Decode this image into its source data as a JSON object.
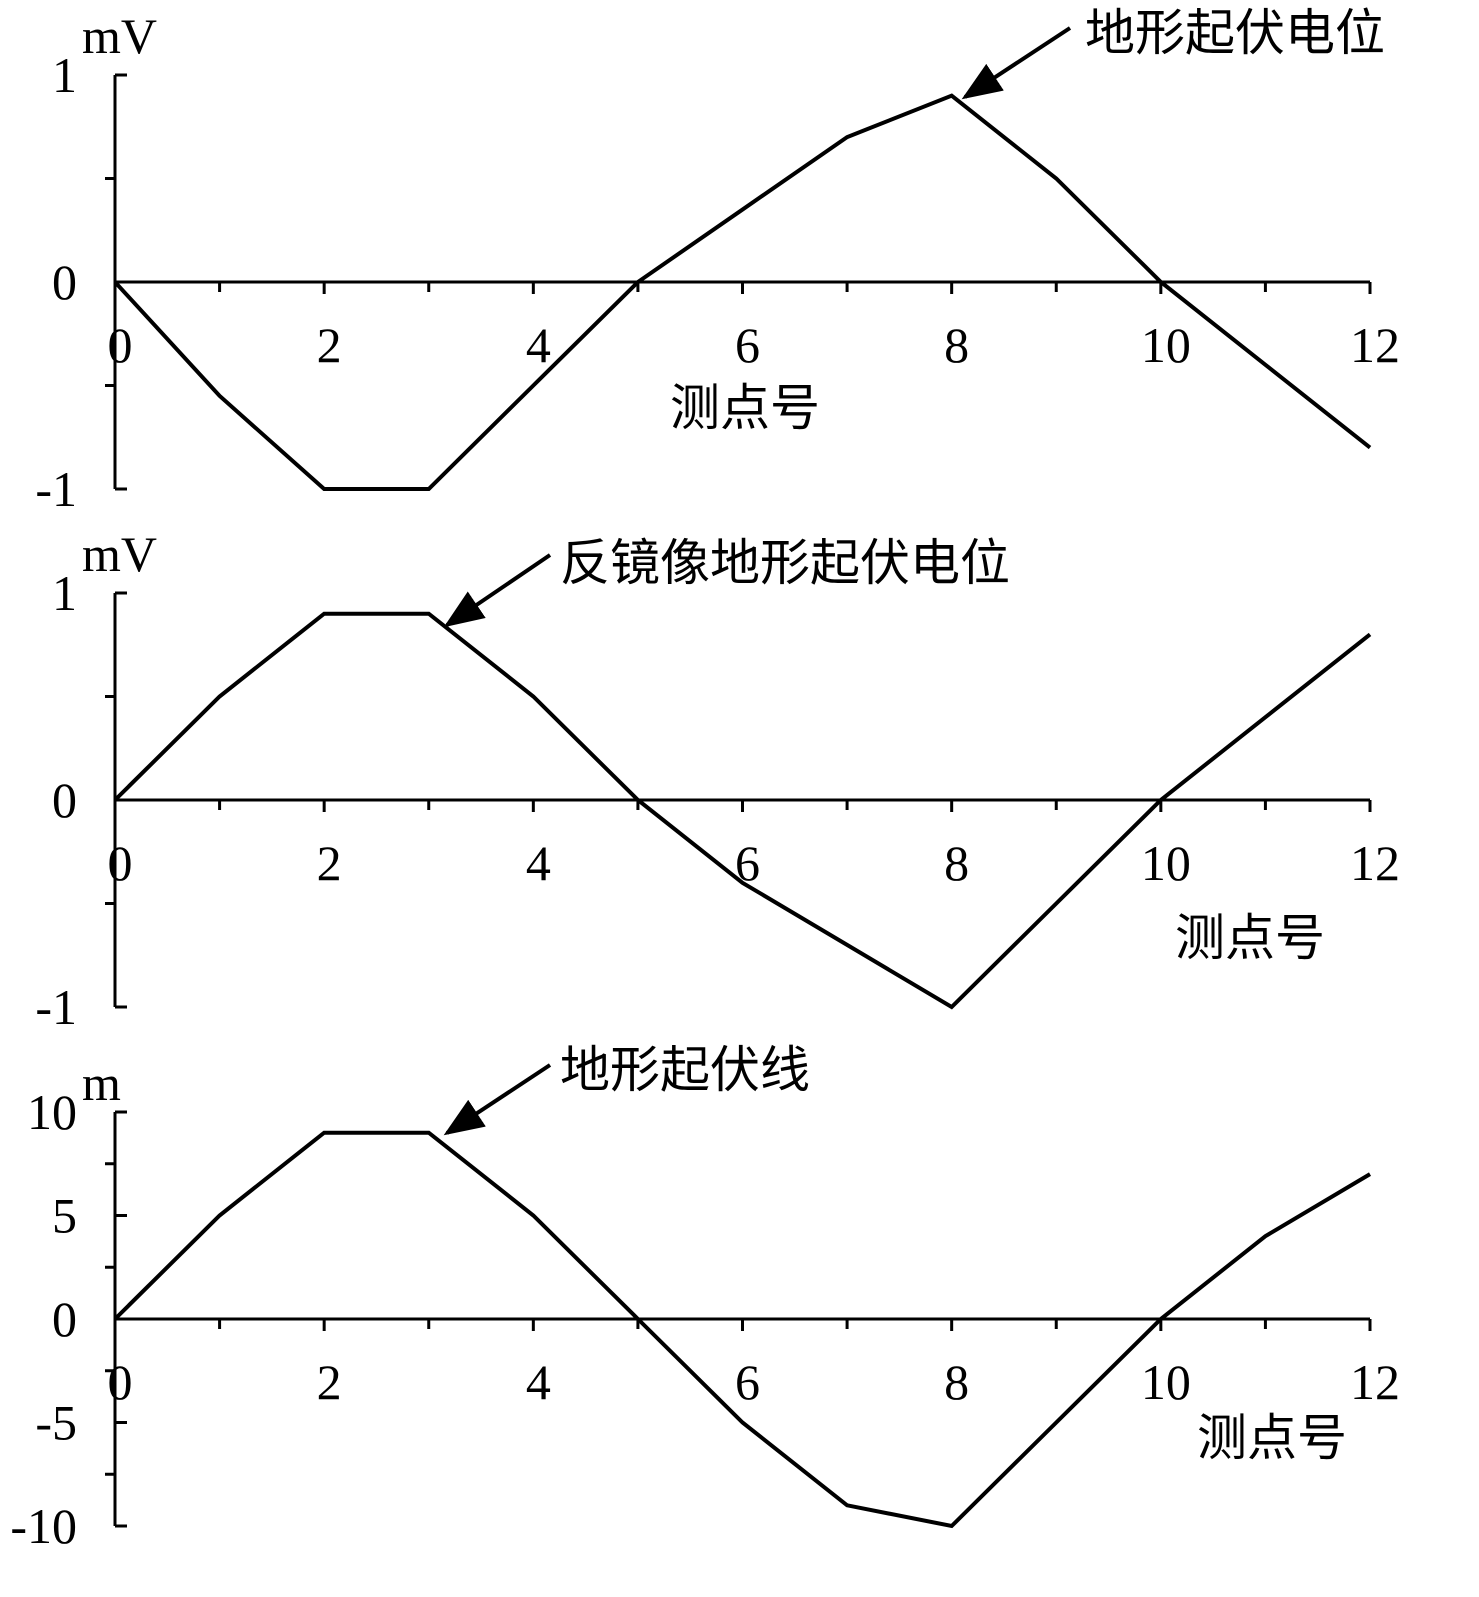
{
  "chart_data": [
    {
      "type": "line",
      "y_unit": "mV",
      "xlabel": "测点号",
      "annotation": "地形起伏电位",
      "x": [
        0,
        1,
        2,
        3,
        4,
        5,
        6,
        7,
        8,
        9,
        10,
        11,
        12
      ],
      "series": [
        {
          "color": "#000000",
          "values": [
            0,
            -0.55,
            -1,
            -1,
            -0.5,
            0,
            0.35,
            0.7,
            0.9,
            0.5,
            0,
            -0.4,
            -0.8
          ]
        }
      ],
      "xlim": [
        0,
        12
      ],
      "ylim": [
        -1,
        1
      ],
      "xticks": [
        0,
        2,
        4,
        6,
        8,
        10,
        12
      ],
      "xminorticks": [
        1,
        3,
        5,
        7,
        9,
        11
      ],
      "yticks": [
        -1,
        0,
        1
      ],
      "yminorticks": [
        -0.5,
        0.5
      ]
    },
    {
      "type": "line",
      "y_unit": "mV",
      "xlabel": "测点号",
      "annotation": "反镜像地形起伏电位",
      "x": [
        0,
        1,
        2,
        3,
        4,
        5,
        6,
        7,
        8,
        9,
        10,
        11,
        12
      ],
      "series": [
        {
          "color": "#000000",
          "values": [
            0,
            0.5,
            0.9,
            0.9,
            0.5,
            0,
            -0.4,
            -0.7,
            -1,
            -0.5,
            0,
            0.4,
            0.8
          ]
        }
      ],
      "xlim": [
        0,
        12
      ],
      "ylim": [
        -1,
        1
      ],
      "xticks": [
        0,
        2,
        4,
        6,
        8,
        10,
        12
      ],
      "xminorticks": [
        1,
        3,
        5,
        7,
        9,
        11
      ],
      "yticks": [
        -1,
        0,
        1
      ],
      "yminorticks": [
        -0.5,
        0.5
      ]
    },
    {
      "type": "line",
      "y_unit": "m",
      "xlabel": "测点号",
      "annotation": "地形起伏线",
      "x": [
        0,
        1,
        2,
        3,
        4,
        5,
        6,
        7,
        8,
        9,
        10,
        11,
        12
      ],
      "series": [
        {
          "color": "#000000",
          "values": [
            0,
            5,
            9,
            9,
            5,
            0,
            -5,
            -9,
            -10,
            -5,
            0,
            4,
            7
          ]
        }
      ],
      "xlim": [
        0,
        12
      ],
      "ylim": [
        -10,
        10
      ],
      "xticks": [
        0,
        2,
        4,
        6,
        8,
        10,
        12
      ],
      "xminorticks": [
        1,
        3,
        5,
        7,
        9,
        11
      ],
      "yticks": [
        -10,
        -5,
        0,
        5,
        10
      ],
      "yminorticks": [
        -7.5,
        -2.5,
        2.5,
        7.5
      ]
    }
  ]
}
